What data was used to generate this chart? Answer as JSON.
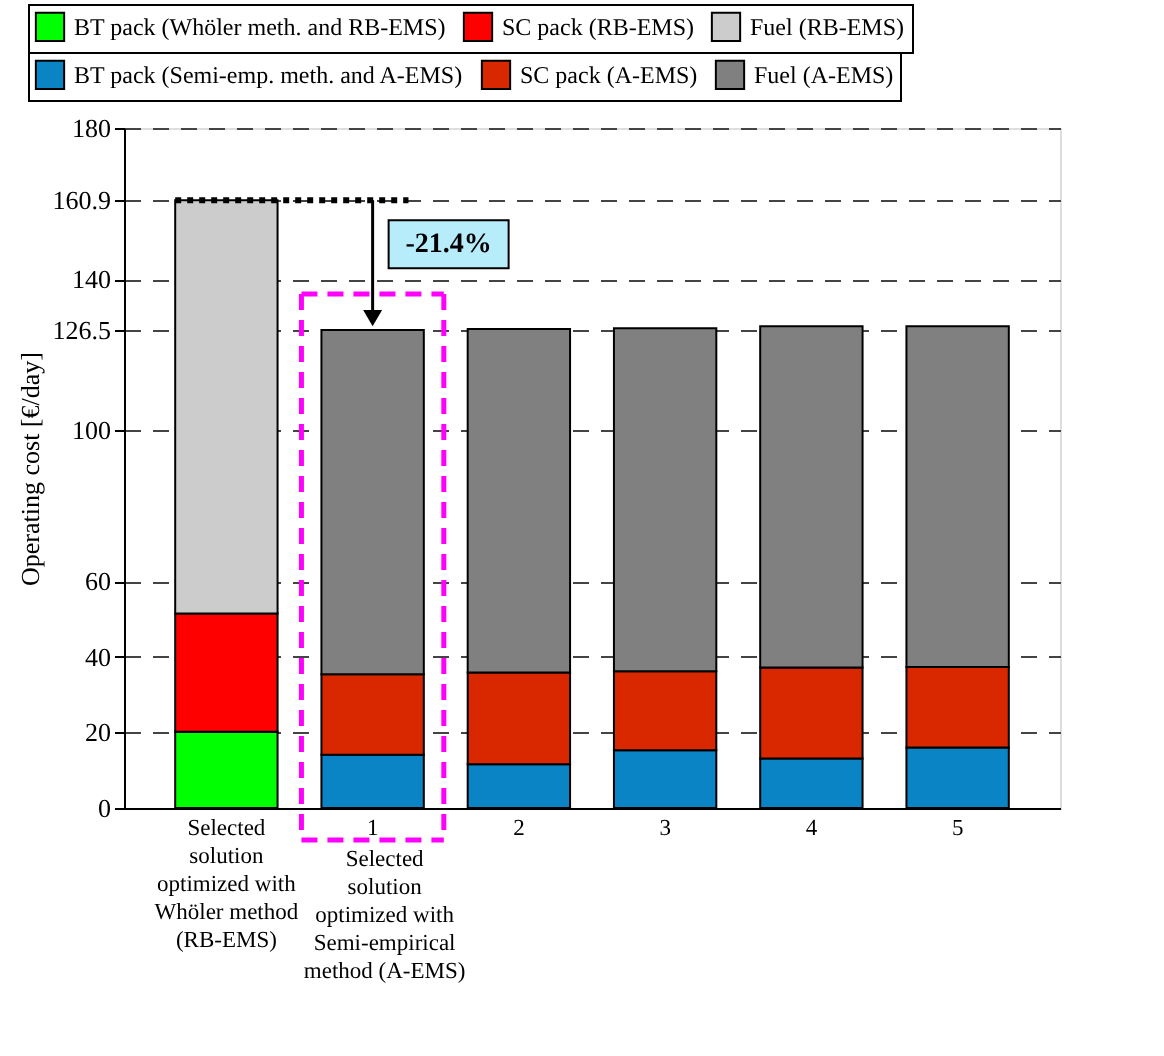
{
  "chart_data": {
    "type": "bar",
    "stacked": true,
    "ylabel": "Operating cost [€/day]",
    "categories": [
      "Selected solution optimized with Whöler method (RB-EMS)",
      "1",
      "2",
      "3",
      "4",
      "5"
    ],
    "series": [
      {
        "name": "BT pack (Whöler meth. and RB-EMS)",
        "color": "#00ff00",
        "values": [
          20.2,
          null,
          null,
          null,
          null,
          null
        ]
      },
      {
        "name": "SC pack (RB-EMS)",
        "color": "#ff0000",
        "values": [
          31.3,
          null,
          null,
          null,
          null,
          null
        ]
      },
      {
        "name": "Fuel (RB-EMS)",
        "color": "#cccccc",
        "values": [
          109.4,
          null,
          null,
          null,
          null,
          null
        ]
      },
      {
        "name": "BT pack (Semi-emp. meth. and A-EMS)",
        "color": "#0b84c6",
        "values": [
          null,
          14.1,
          11.6,
          15.3,
          13.1,
          16.0
        ]
      },
      {
        "name": "SC pack (A-EMS)",
        "color": "#d92800",
        "values": [
          null,
          21.3,
          24.3,
          20.9,
          24.1,
          21.3
        ]
      },
      {
        "name": "Fuel (A-EMS)",
        "color": "#808080",
        "values": [
          null,
          91.1,
          90.9,
          90.8,
          90.3,
          90.2
        ]
      }
    ],
    "ylim": [
      0,
      180
    ],
    "yticks": [
      0,
      20,
      40,
      60,
      100,
      126.5,
      140,
      160.9,
      180
    ],
    "grid": "y",
    "legend": "top",
    "annotations": [
      {
        "text": "-21.4%",
        "x": "1",
        "y": 126.5
      },
      "Selected solution optimized with Semi-empirical method (A-EMS)"
    ]
  }
}
